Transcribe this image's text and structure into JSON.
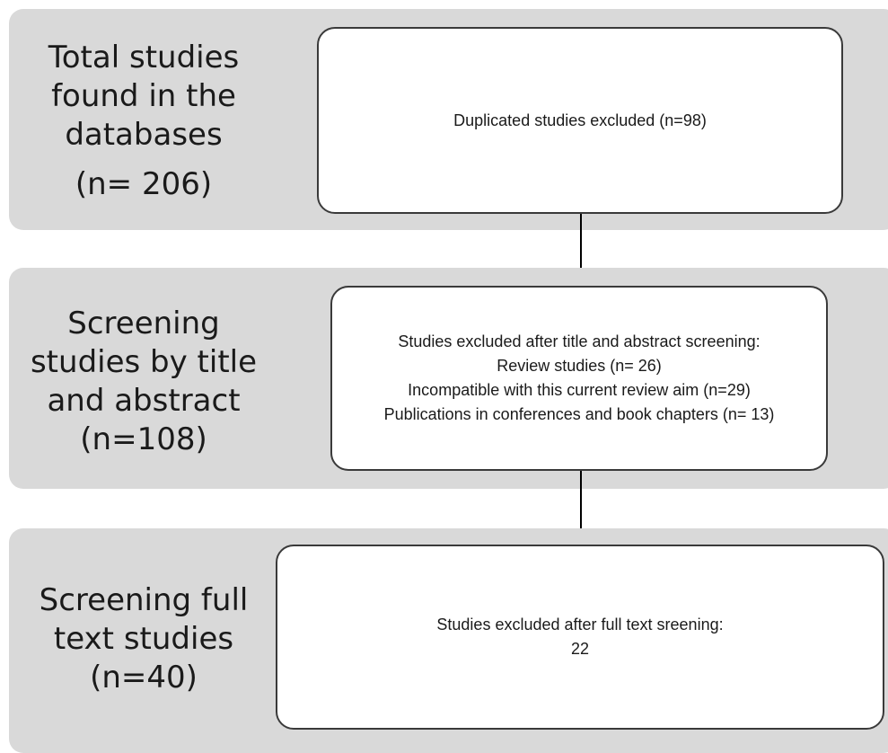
{
  "stages": [
    {
      "label_lines": [
        "Total studies",
        "found in the",
        "databases"
      ],
      "count": "(n= 206)",
      "excluded_lines": [
        "Duplicated studies excluded (n=98)"
      ]
    },
    {
      "label_lines": [
        "Screening",
        "studies by title",
        "and abstract"
      ],
      "count": "(n=108)",
      "excluded_lines": [
        "Studies excluded after title  and abstract screening:",
        "Review studies (n= 26)",
        "Incompatible with this current review aim (n=29)",
        "Publications in conferences and book chapters (n= 13)"
      ]
    },
    {
      "label_lines": [
        "Screening full",
        "text studies"
      ],
      "count": "(n=40)",
      "excluded_lines": [
        "Studies excluded after full text sreening:",
        "22"
      ]
    }
  ],
  "colors": {
    "band": "#d9d9d9",
    "box_border": "#3a3a3a",
    "arrow": "#000000",
    "text": "#1a1a1a"
  }
}
